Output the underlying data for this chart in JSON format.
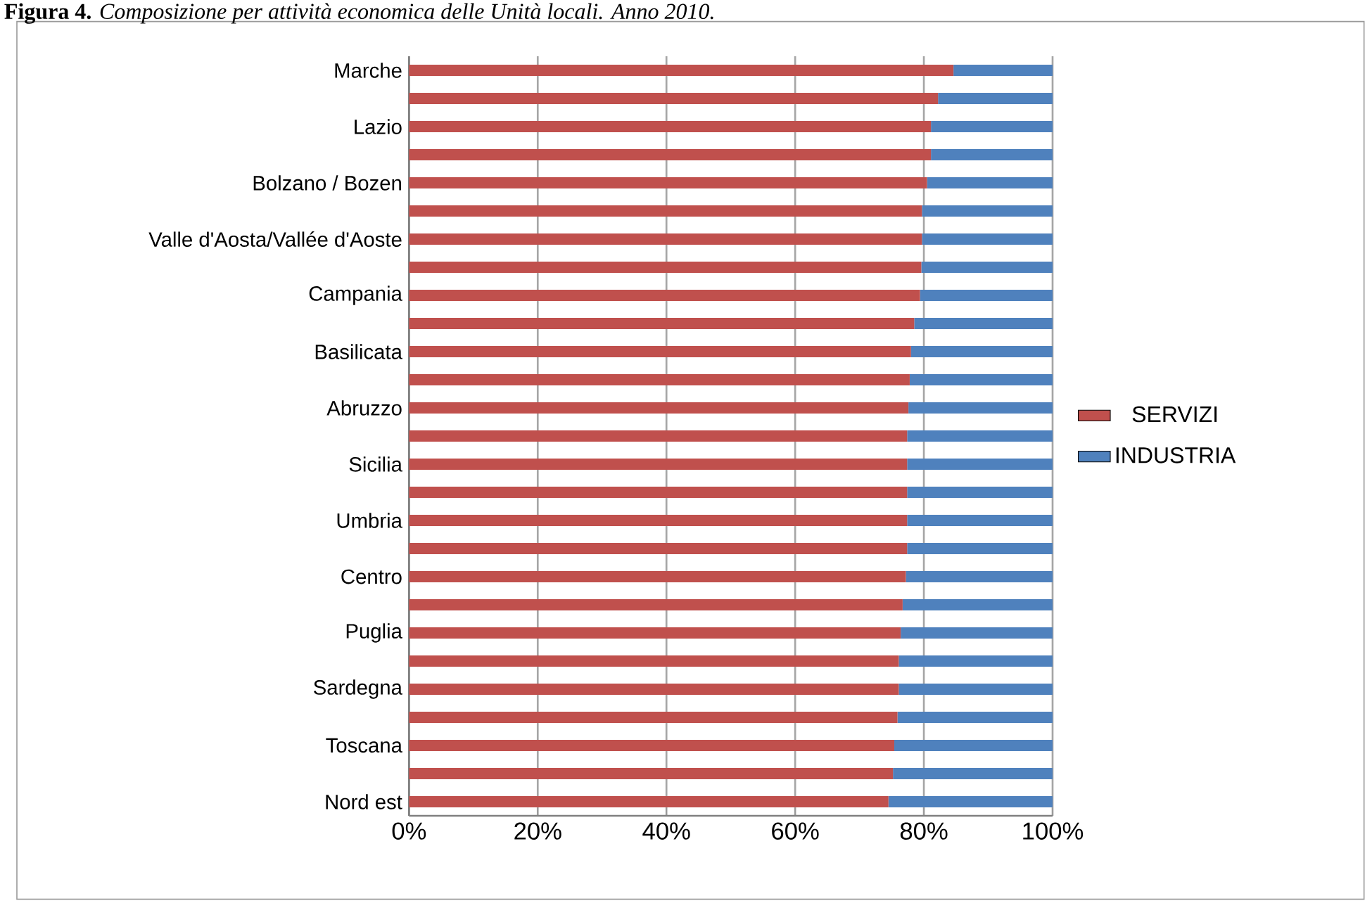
{
  "chart_data": {
    "type": "bar",
    "orientation": "horizontal",
    "stacked": true,
    "title": "**Figura 4.** *Composizione per attività economica delle Unità locali. Anno 2010.*",
    "categories": [
      "Marche",
      null,
      "Lazio",
      null,
      "Bolzano / Bozen",
      null,
      "Valle d'Aosta/Vallée d'Aoste",
      null,
      "Campania",
      null,
      "Basilicata",
      null,
      "Abruzzo",
      null,
      "Sicilia",
      null,
      "Umbria",
      null,
      "Centro",
      null,
      "Puglia",
      null,
      "Sardegna",
      null,
      "Toscana",
      null,
      "Nord est"
    ],
    "series": [
      {
        "name": "SERVIZI",
        "color": "#c0504d",
        "values": [
          84.6,
          82.2,
          81.1,
          81.1,
          80.5,
          79.7,
          79.7,
          79.6,
          79.4,
          78.5,
          78.0,
          77.8,
          77.6,
          77.4,
          77.4,
          77.4,
          77.4,
          77.4,
          77.2,
          76.7,
          76.4,
          76.1,
          76.1,
          75.9,
          75.4,
          75.2,
          74.5
        ]
      },
      {
        "name": "INDUSTRIA",
        "color": "#4f81bd",
        "values": [
          15.4,
          17.8,
          18.9,
          18.9,
          19.5,
          20.3,
          20.3,
          20.4,
          20.6,
          21.5,
          22.0,
          22.2,
          22.4,
          22.6,
          22.6,
          22.6,
          22.6,
          22.6,
          22.8,
          23.3,
          23.6,
          23.9,
          23.9,
          24.1,
          24.6,
          24.8,
          25.5
        ]
      }
    ],
    "xlim": [
      0,
      100
    ],
    "xticks": [
      {
        "value": 0,
        "label": "0%"
      },
      {
        "value": 20,
        "label": "20%"
      },
      {
        "value": 40,
        "label": "40%"
      },
      {
        "value": 60,
        "label": "60%"
      },
      {
        "value": 80,
        "label": "80%"
      },
      {
        "value": 100,
        "label": "100%"
      }
    ],
    "grid": "x",
    "legend": "right"
  }
}
